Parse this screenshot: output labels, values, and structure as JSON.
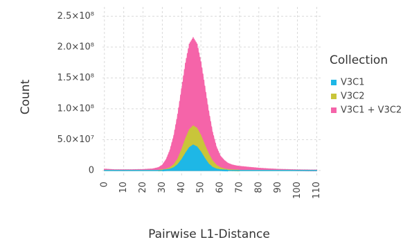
{
  "chart_data": {
    "type": "area",
    "title": "",
    "xlabel": "Pairwise L1-Distance",
    "ylabel": "Count",
    "xlim": [
      -1,
      112
    ],
    "ylim": [
      -8000000,
      265000000
    ],
    "x_ticks": [
      0,
      10,
      20,
      30,
      40,
      50,
      60,
      70,
      80,
      90,
      100,
      110
    ],
    "x_tick_labels": [
      "0",
      "10",
      "20",
      "30",
      "40",
      "50",
      "60",
      "70",
      "80",
      "90",
      "100",
      "110"
    ],
    "y_ticks": [
      0,
      50000000,
      100000000,
      150000000,
      200000000,
      250000000
    ],
    "y_tick_labels": [
      "0",
      "5.0×10⁷",
      "1.0×10⁸",
      "1.5×10⁸",
      "2.0×10⁸",
      "2.5×10⁸"
    ],
    "grid": true,
    "legend": {
      "title": "Collection",
      "position": "right"
    },
    "series": [
      {
        "name": "V3C1 + V3C2",
        "color": "#F564A9",
        "x": [
          0,
          5,
          10,
          15,
          20,
          25,
          28,
          30,
          32,
          34,
          36,
          38,
          40,
          42,
          44,
          46,
          48,
          50,
          52,
          54,
          56,
          58,
          60,
          62,
          64,
          66,
          68,
          70,
          75,
          80,
          85,
          90,
          95,
          100,
          105,
          110
        ],
        "values": [
          1500000,
          600000,
          500000,
          600000,
          900000,
          1800000,
          4000000,
          8000000,
          17000000,
          32000000,
          55000000,
          88000000,
          128000000,
          168000000,
          198000000,
          208000000,
          198000000,
          170000000,
          132000000,
          93000000,
          60000000,
          37000000,
          23000000,
          16000000,
          11000000,
          8500000,
          7000000,
          6000000,
          4500000,
          3000000,
          2000000,
          1200000,
          800000,
          400000,
          200000,
          100000
        ]
      },
      {
        "name": "V3C2",
        "color": "#C9C53A",
        "x": [
          0,
          20,
          28,
          30,
          32,
          34,
          36,
          38,
          40,
          42,
          44,
          46,
          48,
          50,
          52,
          54,
          56,
          58,
          60,
          62,
          64,
          66,
          70,
          80,
          110
        ],
        "values": [
          0,
          0,
          0,
          600000,
          1500000,
          4000000,
          9000000,
          18000000,
          33000000,
          50000000,
          64000000,
          70000000,
          66000000,
          55000000,
          40000000,
          26000000,
          15000000,
          8000000,
          4000000,
          2000000,
          900000,
          400000,
          0,
          0,
          0
        ]
      },
      {
        "name": "V3C1",
        "color": "#1EB7E6",
        "x": [
          0,
          25,
          30,
          32,
          34,
          36,
          38,
          40,
          42,
          44,
          46,
          48,
          50,
          52,
          54,
          56,
          58,
          60,
          62,
          64,
          70,
          110
        ],
        "values": [
          0,
          0,
          0,
          500000,
          1500000,
          4000000,
          9000000,
          17000000,
          27000000,
          36000000,
          40000000,
          37000000,
          29000000,
          19000000,
          10000000,
          4500000,
          1800000,
          600000,
          200000,
          0,
          0,
          0
        ]
      }
    ],
    "legend_order": [
      "V3C1",
      "V3C2",
      "V3C1 + V3C2"
    ]
  }
}
